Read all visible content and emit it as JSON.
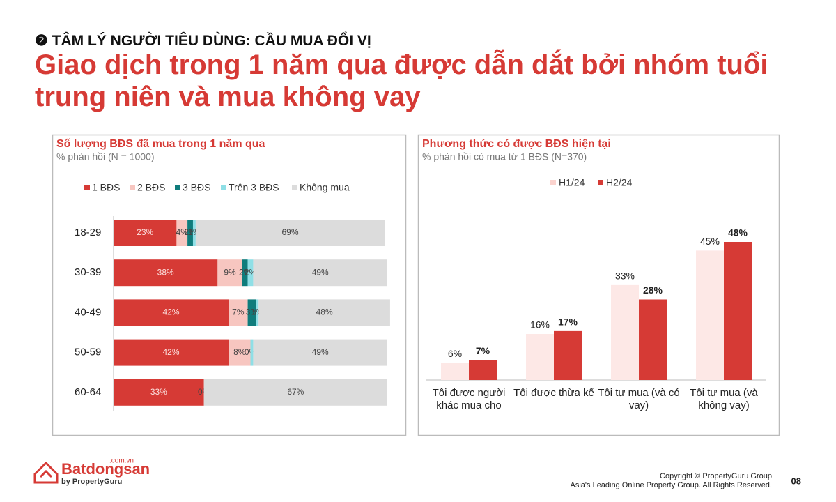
{
  "header": {
    "section": "❷ TÂM LÝ NGƯỜI TIÊU DÙNG: CẦU MUA ĐỔI VỊ",
    "title": "Giao dịch trong 1 năm qua được dẫn dắt bởi nhóm tuổi trung niên và mua không vay"
  },
  "chart_data": [
    {
      "type": "stacked_barh",
      "title": "Số lượng BĐS đã mua trong 1 năm qua",
      "subtitle": "% phản hồi (N = 1000)",
      "categories": [
        "18-29",
        "30-39",
        "40-49",
        "50-59",
        "60-64"
      ],
      "xlim": [
        0,
        100
      ],
      "series": [
        {
          "name": "1 BĐS",
          "color": "#d63a35",
          "values": [
            23,
            38,
            42,
            42,
            33
          ],
          "value_labels": [
            "23%",
            "38%",
            "42%",
            "42%",
            "33%"
          ]
        },
        {
          "name": "2 BĐS",
          "color": "#f7c6c0",
          "values": [
            4,
            9,
            7,
            8,
            0
          ],
          "value_labels": [
            "4%",
            "9%",
            "7%",
            "8%",
            "0%"
          ]
        },
        {
          "name": "3 BĐS",
          "color": "#0f7c7c",
          "values": [
            2,
            2,
            3,
            0,
            0
          ],
          "value_labels": [
            "2%",
            "2%",
            "3%",
            "0%",
            null
          ]
        },
        {
          "name": "Trên 3 BĐS",
          "color": "#8fdfe6",
          "values": [
            1,
            2,
            1,
            1,
            0
          ],
          "value_labels": [
            "1%",
            "2%",
            "1%",
            null,
            null
          ]
        },
        {
          "name": "Không mua",
          "color": "#dcdcdc",
          "values": [
            69,
            49,
            48,
            49,
            67
          ],
          "value_labels": [
            "69%",
            "49%",
            "48%",
            "49%",
            "67%"
          ]
        }
      ]
    },
    {
      "type": "bar",
      "title": "Phương thức có được BĐS hiện tại",
      "subtitle": "% phản hồi có mua từ 1 BĐS (N=370)",
      "categories": [
        "Tôi được người khác mua cho",
        "Tôi được thừa kế",
        "Tôi tự mua (và có vay)",
        "Tôi tự mua (và không vay)"
      ],
      "ylim": [
        0,
        60
      ],
      "series": [
        {
          "name": "H1/24",
          "color": "#fde8e6",
          "values": [
            6,
            16,
            33,
            45
          ],
          "value_labels": [
            "6%",
            "16%",
            "33%",
            "45%"
          ]
        },
        {
          "name": "H2/24",
          "color": "#d63a35",
          "values": [
            7,
            17,
            28,
            48
          ],
          "value_labels": [
            "7%",
            "17%",
            "28%",
            "48%"
          ]
        }
      ]
    }
  ],
  "footer": {
    "logo": "Batdongsan",
    "logo_domain": ".com.vn",
    "logo_by": "by PropertyGuru",
    "copyright": "Copyright © PropertyGuru Group",
    "tagline": "Asia's Leading Online Property Group. All Rights Reserved.",
    "page": "08"
  }
}
